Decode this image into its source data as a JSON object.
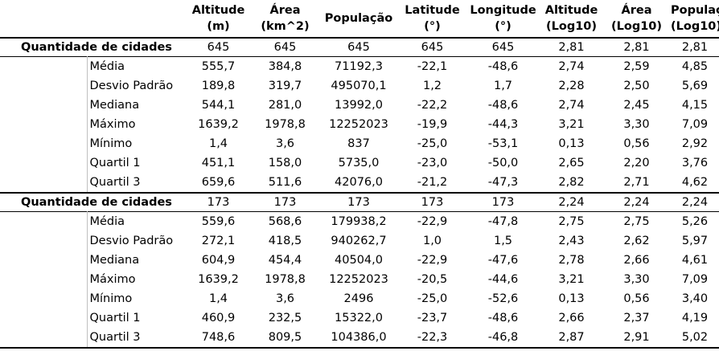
{
  "headers": [
    {
      "line1": "Altitude",
      "line2": "(m)"
    },
    {
      "line1": "Área",
      "line2": "(km^2)"
    },
    {
      "line1": "População",
      "line2": ""
    },
    {
      "line1": "Latitude",
      "line2": "(°)"
    },
    {
      "line1": "Longitude",
      "line2": "(°)"
    },
    {
      "line1": "Altitude",
      "line2": "(Log10)"
    },
    {
      "line1": "Área",
      "line2": "(Log10)"
    },
    {
      "line1": "População",
      "line2": "(Log10)"
    }
  ],
  "groups": [
    {
      "count_label": "Quantidade de cidades",
      "count_values": [
        "645",
        "645",
        "645",
        "645",
        "645",
        "2,81",
        "2,81",
        "2,81"
      ],
      "rows": [
        {
          "name": "Média",
          "values": [
            "555,7",
            "384,8",
            "71192,3",
            "-22,1",
            "-48,6",
            "2,74",
            "2,59",
            "4,85"
          ]
        },
        {
          "name": "Desvio Padrão",
          "values": [
            "189,8",
            "319,7",
            "495070,1",
            "1,2",
            "1,7",
            "2,28",
            "2,50",
            "5,69"
          ]
        },
        {
          "name": "Mediana",
          "values": [
            "544,1",
            "281,0",
            "13992,0",
            "-22,2",
            "-48,6",
            "2,74",
            "2,45",
            "4,15"
          ]
        },
        {
          "name": "Máximo",
          "values": [
            "1639,2",
            "1978,8",
            "12252023",
            "-19,9",
            "-44,3",
            "3,21",
            "3,30",
            "7,09"
          ]
        },
        {
          "name": "Mínimo",
          "values": [
            "1,4",
            "3,6",
            "837",
            "-25,0",
            "-53,1",
            "0,13",
            "0,56",
            "2,92"
          ]
        },
        {
          "name": "Quartil 1",
          "values": [
            "451,1",
            "158,0",
            "5735,0",
            "-23,0",
            "-50,0",
            "2,65",
            "2,20",
            "3,76"
          ]
        },
        {
          "name": "Quartil 3",
          "values": [
            "659,6",
            "511,6",
            "42076,0",
            "-21,2",
            "-47,3",
            "2,82",
            "2,71",
            "4,62"
          ]
        }
      ]
    },
    {
      "count_label": "Quantidade de cidades",
      "count_values": [
        "173",
        "173",
        "173",
        "173",
        "173",
        "2,24",
        "2,24",
        "2,24"
      ],
      "rows": [
        {
          "name": "Média",
          "values": [
            "559,6",
            "568,6",
            "179938,2",
            "-22,9",
            "-47,8",
            "2,75",
            "2,75",
            "5,26"
          ]
        },
        {
          "name": "Desvio Padrão",
          "values": [
            "272,1",
            "418,5",
            "940262,7",
            "1,0",
            "1,5",
            "2,43",
            "2,62",
            "5,97"
          ]
        },
        {
          "name": "Mediana",
          "values": [
            "604,9",
            "454,4",
            "40504,0",
            "-22,9",
            "-47,6",
            "2,78",
            "2,66",
            "4,61"
          ]
        },
        {
          "name": "Máximo",
          "values": [
            "1639,2",
            "1978,8",
            "12252023",
            "-20,5",
            "-44,6",
            "3,21",
            "3,30",
            "7,09"
          ]
        },
        {
          "name": "Mínimo",
          "values": [
            "1,4",
            "3,6",
            "2496",
            "-25,0",
            "-52,6",
            "0,13",
            "0,56",
            "3,40"
          ]
        },
        {
          "name": "Quartil 1",
          "values": [
            "460,9",
            "232,5",
            "15322,0",
            "-23,7",
            "-48,6",
            "2,66",
            "2,37",
            "4,19"
          ]
        },
        {
          "name": "Quartil 3",
          "values": [
            "748,6",
            "809,5",
            "104386,0",
            "-22,3",
            "-46,8",
            "2,87",
            "2,91",
            "5,02"
          ]
        }
      ]
    }
  ]
}
